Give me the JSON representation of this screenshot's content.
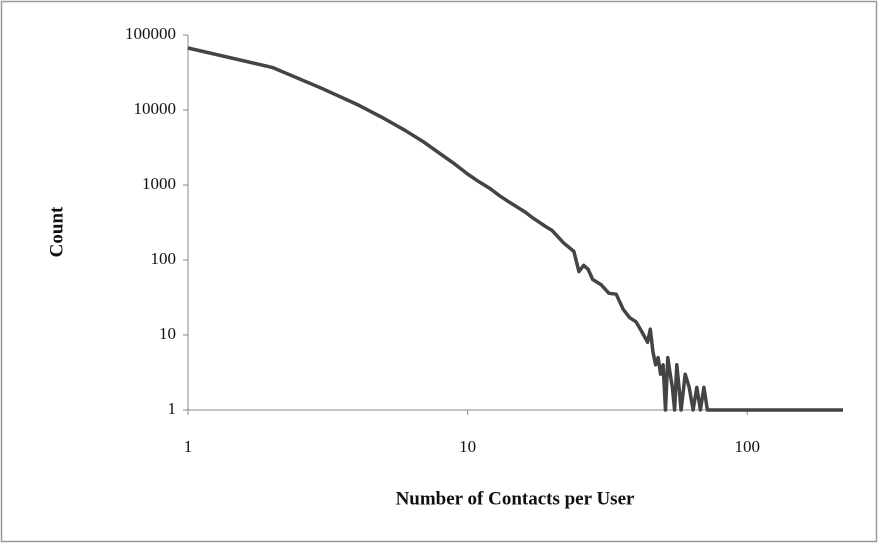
{
  "chart_data": {
    "type": "line",
    "x_label": "Number of Contacts per User",
    "y_label": "Count",
    "x": [
      1,
      2,
      3,
      4,
      5,
      6,
      7,
      8,
      9,
      10,
      11,
      12,
      13,
      14,
      15,
      16,
      17,
      18,
      19,
      20,
      22,
      24,
      25,
      26,
      27,
      28,
      30,
      32,
      34,
      36,
      38,
      40,
      42,
      44,
      45,
      46,
      47,
      48,
      49,
      50,
      51,
      52,
      53,
      54,
      55,
      56,
      57,
      58,
      60,
      62,
      64,
      66,
      68,
      70,
      72,
      100,
      150,
      220
    ],
    "series": [
      {
        "color": "#444444",
        "values": [
          67000,
          37000,
          19500,
          12000,
          7800,
          5300,
          3700,
          2600,
          1900,
          1400,
          1100,
          900,
          720,
          600,
          510,
          440,
          370,
          320,
          280,
          250,
          170,
          130,
          70,
          85,
          75,
          55,
          47,
          36,
          35,
          22,
          17,
          15,
          11,
          8,
          12,
          6,
          4,
          5,
          3,
          4,
          1,
          5,
          3,
          2,
          1,
          4,
          2,
          1,
          3,
          2,
          1,
          2,
          1,
          2,
          1,
          1,
          1,
          1
        ]
      }
    ],
    "log_x": true,
    "log_y": true,
    "xlim": [
      1,
      220
    ],
    "xticks": [
      1,
      10,
      100
    ],
    "ylim": [
      1,
      100000
    ],
    "yticks": [
      1,
      10,
      100,
      1000,
      10000,
      100000
    ]
  }
}
